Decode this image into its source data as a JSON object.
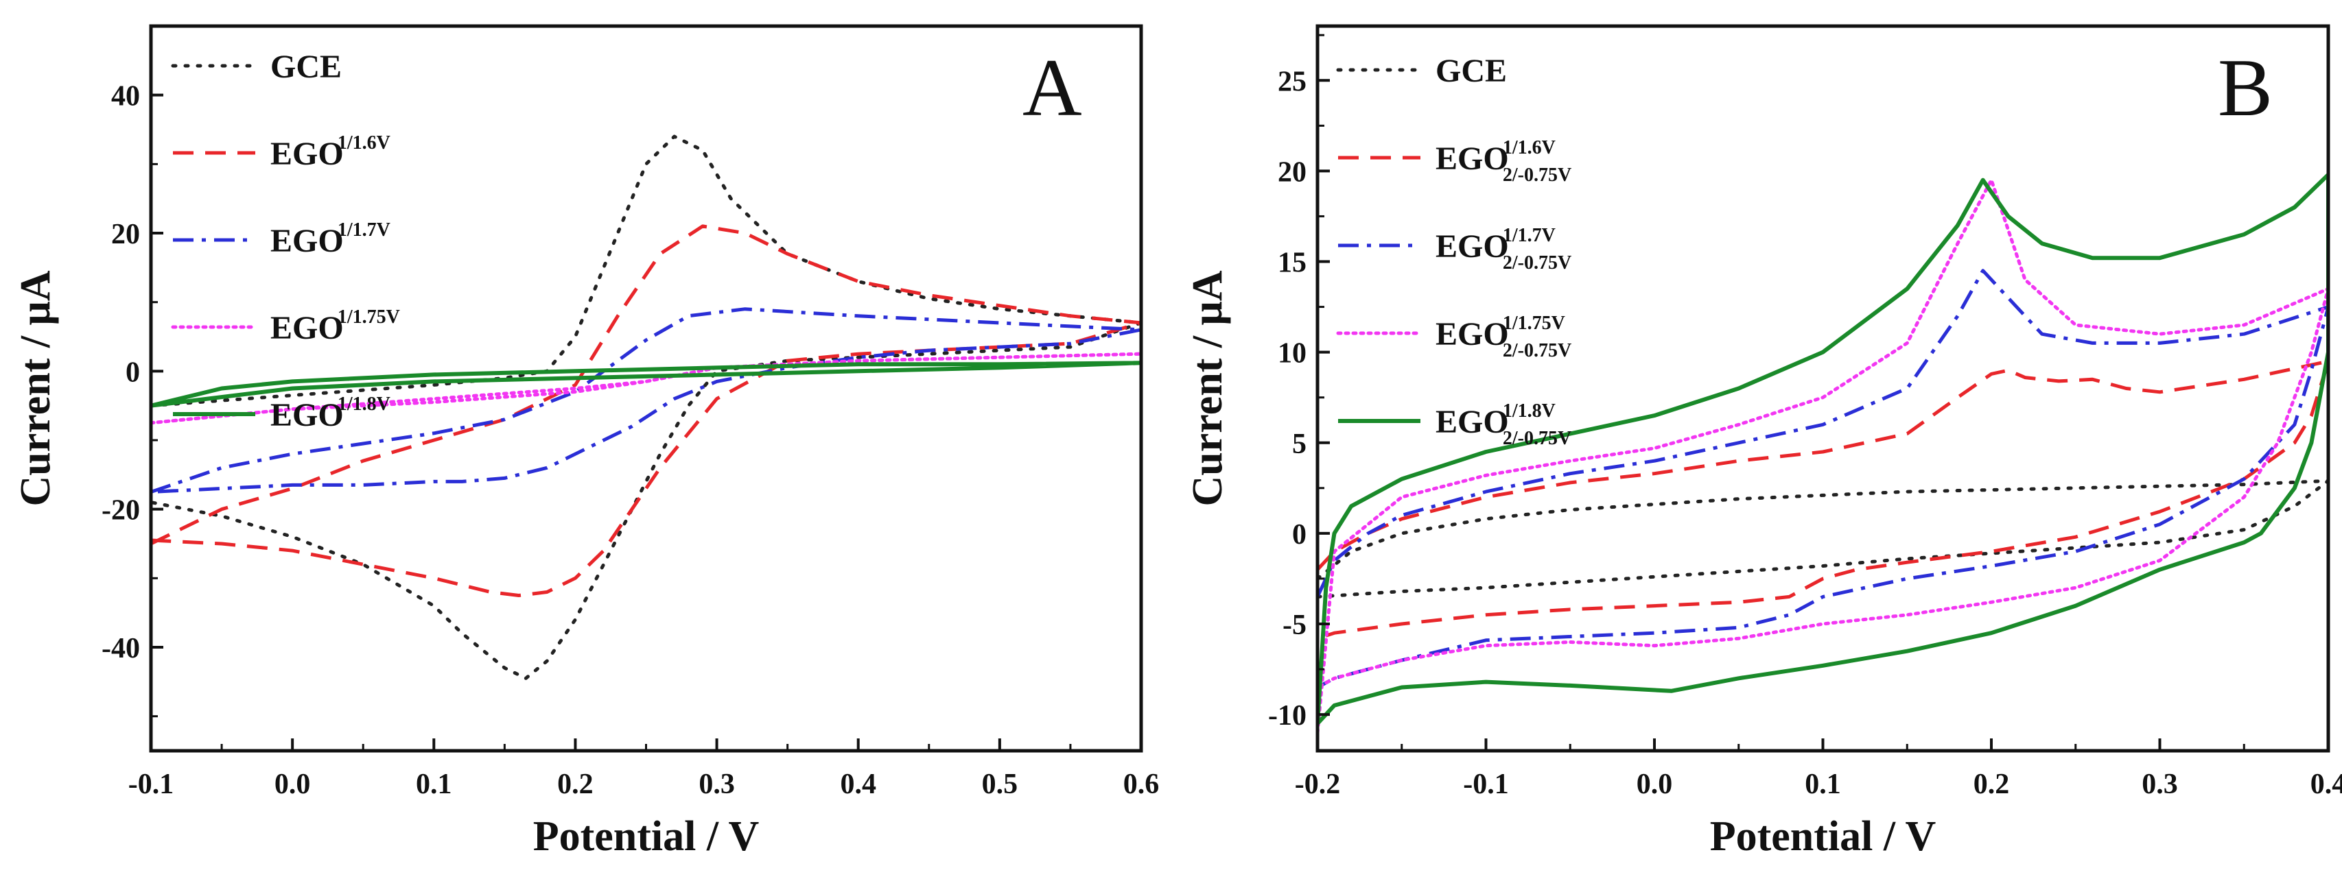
{
  "chart_data": [
    {
      "panel_label": "A",
      "type": "line",
      "title": "",
      "xlabel": "Potential / V",
      "ylabel": "Current / μA",
      "xlim": [
        -0.1,
        0.6
      ],
      "ylim": [
        -55,
        50
      ],
      "xticks": [
        -0.1,
        0.0,
        0.1,
        0.2,
        0.3,
        0.4,
        0.5,
        0.6
      ],
      "xtick_labels": [
        "-0.1",
        "0.0",
        "0.1",
        "0.2",
        "0.3",
        "0.4",
        "0.5",
        "0.6"
      ],
      "yticks": [
        -40,
        -20,
        0,
        20,
        40
      ],
      "ytick_labels": [
        "-40",
        "-20",
        "0",
        "20",
        "40"
      ],
      "legend_position": "top-left",
      "series": [
        {
          "name": "GCE",
          "base": "GCE",
          "sup": "",
          "sub": "",
          "color": "#222222",
          "style": "dot",
          "x": [
            -0.1,
            0.0,
            0.1,
            0.15,
            0.18,
            0.2,
            0.23,
            0.25,
            0.27,
            0.29,
            0.31,
            0.35,
            0.4,
            0.45,
            0.5,
            0.55,
            0.6,
            0.55,
            0.5,
            0.45,
            0.4,
            0.35,
            0.3,
            0.28,
            0.26,
            0.24,
            0.22,
            0.2,
            0.18,
            0.165,
            0.15,
            0.12,
            0.1,
            0.05,
            0.0,
            -0.05,
            -0.1
          ],
          "y": [
            -5,
            -3.5,
            -2,
            -1,
            0,
            5,
            20,
            30,
            34,
            32,
            25,
            17,
            13,
            10.5,
            9,
            8,
            7,
            3.5,
            3,
            2.5,
            2,
            1.5,
            0,
            -5,
            -12,
            -20,
            -28,
            -36,
            -42,
            -44.5,
            -43,
            -38,
            -34,
            -28,
            -24,
            -21,
            -19
          ]
        },
        {
          "name": "EGO 1/1.6V",
          "base": "EGO",
          "sup": "1/1.6V",
          "sub": "",
          "color": "#e8262a",
          "style": "dash",
          "x": [
            -0.1,
            -0.05,
            0.0,
            0.05,
            0.1,
            0.15,
            0.2,
            0.23,
            0.26,
            0.29,
            0.32,
            0.35,
            0.4,
            0.45,
            0.5,
            0.55,
            0.6,
            0.55,
            0.5,
            0.45,
            0.4,
            0.35,
            0.3,
            0.28,
            0.26,
            0.24,
            0.22,
            0.2,
            0.18,
            0.16,
            0.14,
            0.1,
            0.05,
            0.0,
            -0.05,
            -0.1
          ],
          "y": [
            -25,
            -20,
            -17,
            -13,
            -10,
            -7,
            -2,
            8,
            17,
            21,
            20,
            17,
            13,
            11,
            9.5,
            8,
            7,
            4,
            3.5,
            3,
            2.5,
            1.5,
            -4,
            -9,
            -14,
            -20,
            -26,
            -30,
            -32,
            -32.5,
            -32,
            -30,
            -28,
            -26,
            -25,
            -24.5
          ]
        },
        {
          "name": "EGO 1/1.7V",
          "base": "EGO",
          "sup": "1/1.7V",
          "sub": "",
          "color": "#2a2ed6",
          "style": "dashdot",
          "x": [
            -0.1,
            -0.05,
            0.0,
            0.05,
            0.1,
            0.15,
            0.2,
            0.22,
            0.25,
            0.28,
            0.32,
            0.36,
            0.4,
            0.45,
            0.5,
            0.55,
            0.6,
            0.55,
            0.5,
            0.45,
            0.4,
            0.35,
            0.3,
            0.27,
            0.24,
            0.21,
            0.18,
            0.15,
            0.12,
            0.1,
            0.05,
            0.0,
            -0.05,
            -0.1
          ],
          "y": [
            -17.5,
            -14,
            -12,
            -10.5,
            -9,
            -7,
            -3,
            0,
            4.5,
            8,
            9,
            8.5,
            8,
            7.5,
            7,
            6.5,
            6,
            4,
            3.5,
            3,
            2,
            0.5,
            -1.5,
            -4,
            -8,
            -11,
            -14,
            -15.5,
            -16,
            -16,
            -16.5,
            -16.5,
            -17,
            -17.5
          ]
        },
        {
          "name": "EGO 1/1.75V",
          "base": "EGO",
          "sup": "1/1.75V",
          "sub": "",
          "color": "#f236f2",
          "style": "fine",
          "x": [
            -0.1,
            0.0,
            0.1,
            0.2,
            0.25,
            0.3,
            0.4,
            0.5,
            0.6,
            0.5,
            0.4,
            0.3,
            0.25,
            0.2,
            0.1,
            0.0,
            -0.1
          ],
          "y": [
            -7.5,
            -5.5,
            -4.5,
            -3,
            -1.5,
            0.5,
            1.5,
            2,
            2.5,
            2,
            1.5,
            0.5,
            -1.5,
            -2.5,
            -4,
            -5.5,
            -7.5
          ]
        },
        {
          "name": "EGO 1/1.8V",
          "base": "EGO",
          "sup": "1/1.8V",
          "sub": "",
          "color": "#1a8a2a",
          "style": "solid",
          "x": [
            -0.1,
            -0.05,
            0.0,
            0.1,
            0.2,
            0.3,
            0.4,
            0.5,
            0.6,
            0.5,
            0.4,
            0.3,
            0.2,
            0.1,
            0.0,
            -0.1
          ],
          "y": [
            -5,
            -2.5,
            -1.5,
            -0.5,
            0,
            0.5,
            1,
            1,
            1.2,
            0.5,
            0,
            -0.5,
            -1,
            -1.5,
            -2.5,
            -5
          ]
        }
      ]
    },
    {
      "panel_label": "B",
      "type": "line",
      "title": "",
      "xlabel": "Potential / V",
      "ylabel": "Current / μA",
      "xlim": [
        -0.2,
        0.4
      ],
      "ylim": [
        -12,
        28
      ],
      "xticks": [
        -0.2,
        -0.1,
        0.0,
        0.1,
        0.2,
        0.3,
        0.4
      ],
      "xtick_labels": [
        "-0.2",
        "-0.1",
        "0.0",
        "0.1",
        "0.2",
        "0.3",
        "0.4"
      ],
      "yticks": [
        -10,
        -5,
        0,
        5,
        10,
        15,
        20,
        25
      ],
      "ytick_labels": [
        "-10",
        "-5",
        "0",
        "5",
        "10",
        "15",
        "20",
        "25"
      ],
      "legend_position": "top-left",
      "series": [
        {
          "name": "GCE",
          "base": "GCE",
          "sup": "",
          "sub": "",
          "color": "#222222",
          "style": "dot",
          "x": [
            -0.2,
            -0.18,
            -0.15,
            -0.1,
            -0.05,
            0.0,
            0.05,
            0.1,
            0.15,
            0.2,
            0.25,
            0.3,
            0.35,
            0.4,
            0.38,
            0.35,
            0.3,
            0.25,
            0.2,
            0.15,
            0.1,
            0.05,
            0.0,
            -0.05,
            -0.1,
            -0.15,
            -0.2
          ],
          "y": [
            -2.5,
            -1,
            0,
            0.8,
            1.3,
            1.6,
            1.9,
            2.1,
            2.3,
            2.4,
            2.5,
            2.6,
            2.7,
            2.9,
            1.5,
            0.2,
            -0.5,
            -0.8,
            -1.1,
            -1.4,
            -1.8,
            -2.1,
            -2.4,
            -2.7,
            -3,
            -3.2,
            -3.5
          ]
        },
        {
          "name": "EGO 1/1.6V 2/-0.75V",
          "base": "EGO",
          "sup": "1/1.6V",
          "sub": "2/-0.75V",
          "color": "#e8262a",
          "style": "dash",
          "x": [
            -0.2,
            -0.19,
            -0.17,
            -0.15,
            -0.1,
            -0.05,
            0.0,
            0.05,
            0.1,
            0.15,
            0.18,
            0.2,
            0.21,
            0.22,
            0.24,
            0.26,
            0.28,
            0.3,
            0.35,
            0.4,
            0.39,
            0.38,
            0.35,
            0.3,
            0.25,
            0.2,
            0.15,
            0.12,
            0.1,
            0.08,
            0.05,
            0.0,
            -0.05,
            -0.1,
            -0.15,
            -0.19,
            -0.2
          ],
          "y": [
            -2,
            -1,
            0,
            0.8,
            2,
            2.8,
            3.3,
            4,
            4.5,
            5.5,
            7.5,
            8.8,
            9,
            8.6,
            8.4,
            8.5,
            8,
            7.8,
            8.5,
            9.5,
            6.5,
            5,
            3,
            1.2,
            -0.2,
            -1,
            -1.6,
            -2,
            -2.5,
            -3.5,
            -3.8,
            -4,
            -4.2,
            -4.5,
            -5,
            -5.5,
            -5.8
          ]
        },
        {
          "name": "EGO 1/1.7V 2/-0.75V",
          "base": "EGO",
          "sup": "1/1.7V",
          "sub": "2/-0.75V",
          "color": "#2a2ed6",
          "style": "dashdot",
          "x": [
            -0.2,
            -0.19,
            -0.17,
            -0.15,
            -0.1,
            -0.05,
            0.0,
            0.05,
            0.1,
            0.15,
            0.18,
            0.195,
            0.21,
            0.23,
            0.26,
            0.3,
            0.35,
            0.4,
            0.39,
            0.38,
            0.35,
            0.3,
            0.25,
            0.2,
            0.15,
            0.1,
            0.08,
            0.05,
            0.0,
            -0.05,
            -0.1,
            -0.15,
            -0.19,
            -0.2
          ],
          "y": [
            -3.5,
            -1.5,
            0,
            1,
            2.3,
            3.3,
            4,
            5,
            6,
            8,
            12,
            14.5,
            13,
            11,
            10.5,
            10.5,
            11,
            12.5,
            9,
            6,
            3,
            0.5,
            -1,
            -1.8,
            -2.5,
            -3.5,
            -4.5,
            -5.2,
            -5.5,
            -5.7,
            -5.9,
            -7,
            -8,
            -8.5
          ]
        },
        {
          "name": "EGO 1/1.75V 2/-0.75V",
          "base": "EGO",
          "sup": "1/1.75V",
          "sub": "2/-0.75V",
          "color": "#f236f2",
          "style": "fine",
          "x": [
            -0.2,
            -0.19,
            -0.17,
            -0.15,
            -0.1,
            -0.05,
            0.0,
            0.05,
            0.1,
            0.15,
            0.18,
            0.2,
            0.22,
            0.25,
            0.3,
            0.35,
            0.4,
            0.39,
            0.37,
            0.35,
            0.3,
            0.25,
            0.2,
            0.15,
            0.1,
            0.05,
            0.0,
            -0.05,
            -0.1,
            -0.15,
            -0.19,
            -0.2
          ],
          "y": [
            -11,
            -1,
            0.5,
            2,
            3.2,
            4,
            4.7,
            6,
            7.5,
            10.5,
            16,
            19.5,
            14,
            11.5,
            11,
            11.5,
            13.5,
            10,
            5,
            2,
            -1.5,
            -3,
            -3.8,
            -4.5,
            -5,
            -5.8,
            -6.2,
            -6,
            -6.2,
            -7,
            -8,
            -8.5
          ]
        },
        {
          "name": "EGO 1/1.8V 2/-0.75V",
          "base": "EGO",
          "sup": "1/1.8V",
          "sub": "2/-0.75V",
          "color": "#1a8a2a",
          "style": "solid",
          "x": [
            -0.2,
            -0.195,
            -0.19,
            -0.18,
            -0.15,
            -0.1,
            -0.05,
            0.0,
            0.05,
            0.1,
            0.15,
            0.18,
            0.195,
            0.21,
            0.23,
            0.26,
            0.3,
            0.35,
            0.38,
            0.4,
            0.4,
            0.39,
            0.38,
            0.36,
            0.35,
            0.3,
            0.25,
            0.2,
            0.15,
            0.1,
            0.05,
            0.01,
            -0.05,
            -0.1,
            -0.15,
            -0.19,
            -0.2
          ],
          "y": [
            -10.5,
            -3,
            0,
            1.5,
            3,
            4.5,
            5.5,
            6.5,
            8,
            10,
            13.5,
            17,
            19.5,
            17.5,
            16,
            15.2,
            15.2,
            16.5,
            18,
            19.8,
            10,
            5,
            2.5,
            0,
            -0.5,
            -2,
            -4,
            -5.5,
            -6.5,
            -7.3,
            -8,
            -8.7,
            -8.4,
            -8.2,
            -8.5,
            -9.5,
            -10.5
          ]
        }
      ]
    }
  ]
}
